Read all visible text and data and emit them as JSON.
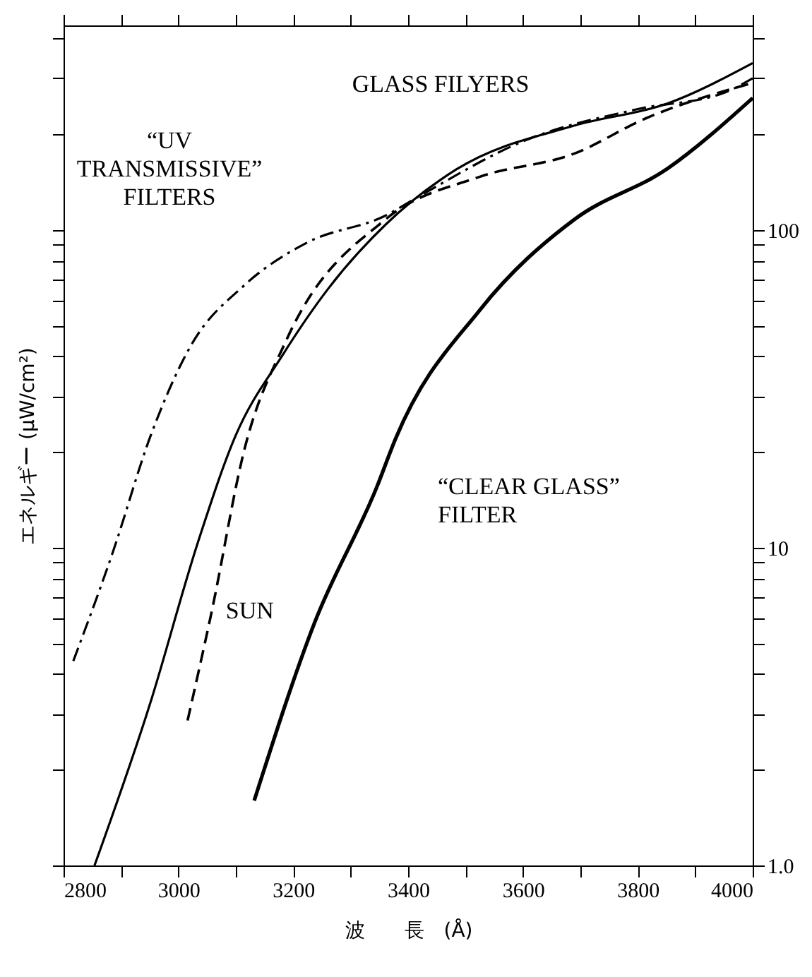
{
  "chart_data": {
    "type": "line",
    "xlabel": "波　　長　(Å)",
    "ylabel": "エネルギー (μW/cm²)",
    "log": "y",
    "xlim": [
      2800,
      4000
    ],
    "ylim": [
      1,
      440
    ],
    "xticks": [
      2800,
      {
        "value": 2900,
        "label": null
      },
      3000,
      {
        "value": 3100,
        "label": null
      },
      3200,
      {
        "value": 3300,
        "label": null
      },
      3400,
      {
        "value": 3500,
        "label": null
      },
      3600,
      {
        "value": 3700,
        "label": null
      },
      3800,
      {
        "value": 3900,
        "label": null
      },
      4000
    ],
    "yticks": [
      {
        "value": 1,
        "label": "1.0"
      },
      {
        "value": 2,
        "label": null
      },
      {
        "value": 3,
        "label": null
      },
      {
        "value": 4,
        "label": null
      },
      {
        "value": 5,
        "label": null
      },
      {
        "value": 6,
        "label": null
      },
      {
        "value": 7,
        "label": null
      },
      {
        "value": 8,
        "label": null
      },
      {
        "value": 9,
        "label": null
      },
      10,
      {
        "value": 20,
        "label": null
      },
      {
        "value": 30,
        "label": null
      },
      {
        "value": 40,
        "label": null
      },
      {
        "value": 50,
        "label": null
      },
      {
        "value": 60,
        "label": null
      },
      {
        "value": 70,
        "label": null
      },
      {
        "value": 80,
        "label": null
      },
      {
        "value": 90,
        "label": null
      },
      100,
      {
        "value": 200,
        "label": null
      },
      {
        "value": 300,
        "label": null
      },
      {
        "value": 400,
        "label": null
      }
    ],
    "grid": false,
    "series": [
      {
        "color": "#000000",
        "line_style": "dashdot",
        "x": [
          2817,
          2886,
          2952,
          3021,
          3115,
          3223,
          3361,
          3427,
          3600,
          3800,
          3950,
          4000
        ],
        "values": [
          4.4,
          9.7,
          22.6,
          43,
          67,
          91,
          111,
          130,
          190,
          240,
          270,
          300
        ]
      },
      {
        "color": "#000000",
        "line_style": "solid",
        "x": [
          2854,
          2950,
          3034,
          3100,
          3180,
          3260,
          3361,
          3484,
          3690,
          3852,
          4000
        ],
        "values": [
          1,
          3.2,
          10.4,
          22.6,
          40,
          65,
          104,
          155,
          213,
          250,
          335
        ]
      },
      {
        "color": "#000000",
        "line_style": "dashed",
        "x": [
          3016,
          3058,
          3115,
          3188,
          3361,
          3525,
          3690,
          3813,
          4000
        ],
        "values": [
          2.86,
          6.3,
          20.4,
          45,
          108,
          147,
          174,
          224,
          290
        ]
      },
      {
        "color": "#000000",
        "line_style": "solid",
        "x": [
          3132,
          3237,
          3346,
          3378,
          3525,
          3690,
          3852,
          4000
        ],
        "values": [
          1.6,
          5.8,
          15.6,
          22,
          56,
          108,
          156,
          260
        ]
      }
    ],
    "annotations": [
      "GLASS FILYERS",
      "“UV\nTRANSMISSIVE”\nFILTERS",
      {
        "text": "SUN",
        "x": 3058,
        "y": 6.3
      },
      "“CLEAR GLASS”\nFILTER"
    ]
  }
}
